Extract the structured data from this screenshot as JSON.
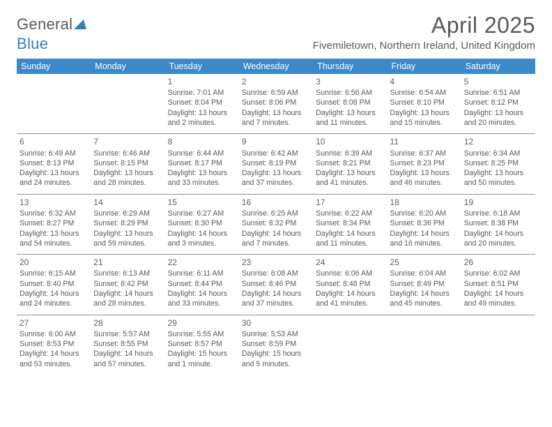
{
  "logo": {
    "general": "General",
    "blue": "Blue"
  },
  "title": "April 2025",
  "location": "Fivemiletown, Northern Ireland, United Kingdom",
  "colors": {
    "header_bg": "#3b89c9",
    "header_text": "#ffffff",
    "row_border": "#7a98b0",
    "text": "#595959"
  },
  "daynames": [
    "Sunday",
    "Monday",
    "Tuesday",
    "Wednesday",
    "Thursday",
    "Friday",
    "Saturday"
  ],
  "weeks": [
    [
      null,
      null,
      {
        "n": "1",
        "sr": "Sunrise: 7:01 AM",
        "ss": "Sunset: 8:04 PM",
        "dl": "Daylight: 13 hours and 2 minutes."
      },
      {
        "n": "2",
        "sr": "Sunrise: 6:59 AM",
        "ss": "Sunset: 8:06 PM",
        "dl": "Daylight: 13 hours and 7 minutes."
      },
      {
        "n": "3",
        "sr": "Sunrise: 6:56 AM",
        "ss": "Sunset: 8:08 PM",
        "dl": "Daylight: 13 hours and 11 minutes."
      },
      {
        "n": "4",
        "sr": "Sunrise: 6:54 AM",
        "ss": "Sunset: 8:10 PM",
        "dl": "Daylight: 13 hours and 15 minutes."
      },
      {
        "n": "5",
        "sr": "Sunrise: 6:51 AM",
        "ss": "Sunset: 8:12 PM",
        "dl": "Daylight: 13 hours and 20 minutes."
      }
    ],
    [
      {
        "n": "6",
        "sr": "Sunrise: 6:49 AM",
        "ss": "Sunset: 8:13 PM",
        "dl": "Daylight: 13 hours and 24 minutes."
      },
      {
        "n": "7",
        "sr": "Sunrise: 6:46 AM",
        "ss": "Sunset: 8:15 PM",
        "dl": "Daylight: 13 hours and 28 minutes."
      },
      {
        "n": "8",
        "sr": "Sunrise: 6:44 AM",
        "ss": "Sunset: 8:17 PM",
        "dl": "Daylight: 13 hours and 33 minutes."
      },
      {
        "n": "9",
        "sr": "Sunrise: 6:42 AM",
        "ss": "Sunset: 8:19 PM",
        "dl": "Daylight: 13 hours and 37 minutes."
      },
      {
        "n": "10",
        "sr": "Sunrise: 6:39 AM",
        "ss": "Sunset: 8:21 PM",
        "dl": "Daylight: 13 hours and 41 minutes."
      },
      {
        "n": "11",
        "sr": "Sunrise: 6:37 AM",
        "ss": "Sunset: 8:23 PM",
        "dl": "Daylight: 13 hours and 46 minutes."
      },
      {
        "n": "12",
        "sr": "Sunrise: 6:34 AM",
        "ss": "Sunset: 8:25 PM",
        "dl": "Daylight: 13 hours and 50 minutes."
      }
    ],
    [
      {
        "n": "13",
        "sr": "Sunrise: 6:32 AM",
        "ss": "Sunset: 8:27 PM",
        "dl": "Daylight: 13 hours and 54 minutes."
      },
      {
        "n": "14",
        "sr": "Sunrise: 6:29 AM",
        "ss": "Sunset: 8:29 PM",
        "dl": "Daylight: 13 hours and 59 minutes."
      },
      {
        "n": "15",
        "sr": "Sunrise: 6:27 AM",
        "ss": "Sunset: 8:30 PM",
        "dl": "Daylight: 14 hours and 3 minutes."
      },
      {
        "n": "16",
        "sr": "Sunrise: 6:25 AM",
        "ss": "Sunset: 8:32 PM",
        "dl": "Daylight: 14 hours and 7 minutes."
      },
      {
        "n": "17",
        "sr": "Sunrise: 6:22 AM",
        "ss": "Sunset: 8:34 PM",
        "dl": "Daylight: 14 hours and 11 minutes."
      },
      {
        "n": "18",
        "sr": "Sunrise: 6:20 AM",
        "ss": "Sunset: 8:36 PM",
        "dl": "Daylight: 14 hours and 16 minutes."
      },
      {
        "n": "19",
        "sr": "Sunrise: 6:18 AM",
        "ss": "Sunset: 8:38 PM",
        "dl": "Daylight: 14 hours and 20 minutes."
      }
    ],
    [
      {
        "n": "20",
        "sr": "Sunrise: 6:15 AM",
        "ss": "Sunset: 8:40 PM",
        "dl": "Daylight: 14 hours and 24 minutes."
      },
      {
        "n": "21",
        "sr": "Sunrise: 6:13 AM",
        "ss": "Sunset: 8:42 PM",
        "dl": "Daylight: 14 hours and 28 minutes."
      },
      {
        "n": "22",
        "sr": "Sunrise: 6:11 AM",
        "ss": "Sunset: 8:44 PM",
        "dl": "Daylight: 14 hours and 33 minutes."
      },
      {
        "n": "23",
        "sr": "Sunrise: 6:08 AM",
        "ss": "Sunset: 8:46 PM",
        "dl": "Daylight: 14 hours and 37 minutes."
      },
      {
        "n": "24",
        "sr": "Sunrise: 6:06 AM",
        "ss": "Sunset: 8:48 PM",
        "dl": "Daylight: 14 hours and 41 minutes."
      },
      {
        "n": "25",
        "sr": "Sunrise: 6:04 AM",
        "ss": "Sunset: 8:49 PM",
        "dl": "Daylight: 14 hours and 45 minutes."
      },
      {
        "n": "26",
        "sr": "Sunrise: 6:02 AM",
        "ss": "Sunset: 8:51 PM",
        "dl": "Daylight: 14 hours and 49 minutes."
      }
    ],
    [
      {
        "n": "27",
        "sr": "Sunrise: 6:00 AM",
        "ss": "Sunset: 8:53 PM",
        "dl": "Daylight: 14 hours and 53 minutes."
      },
      {
        "n": "28",
        "sr": "Sunrise: 5:57 AM",
        "ss": "Sunset: 8:55 PM",
        "dl": "Daylight: 14 hours and 57 minutes."
      },
      {
        "n": "29",
        "sr": "Sunrise: 5:55 AM",
        "ss": "Sunset: 8:57 PM",
        "dl": "Daylight: 15 hours and 1 minute."
      },
      {
        "n": "30",
        "sr": "Sunrise: 5:53 AM",
        "ss": "Sunset: 8:59 PM",
        "dl": "Daylight: 15 hours and 5 minutes."
      },
      null,
      null,
      null
    ]
  ]
}
